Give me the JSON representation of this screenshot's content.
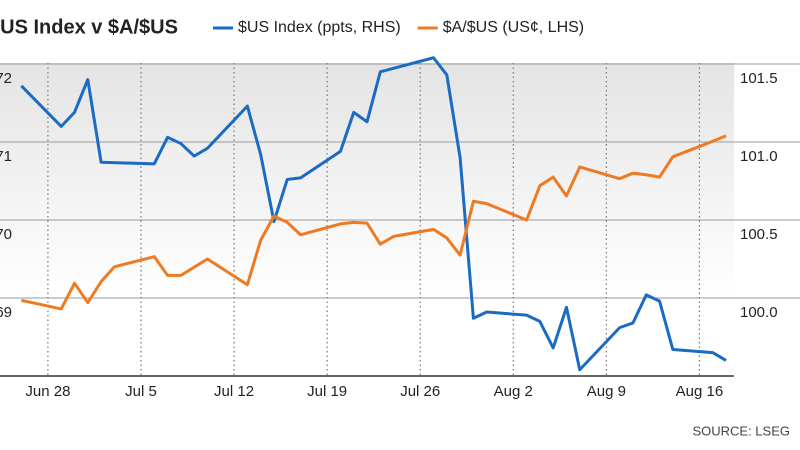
{
  "chart_data": {
    "type": "line",
    "title": "$US Index v $A/$US",
    "source": "SOURCE: LSEG",
    "xlim": [
      -2.1,
      51.6
    ],
    "xticks": [
      {
        "value": 0,
        "label": "Jun 28"
      },
      {
        "value": 7,
        "label": "Jul 5"
      },
      {
        "value": 14,
        "label": "Jul 12"
      },
      {
        "value": 21,
        "label": "Jul 19"
      },
      {
        "value": 28,
        "label": "Jul 26"
      },
      {
        "value": 35,
        "label": "Aug 2"
      },
      {
        "value": 42,
        "label": "Aug 9"
      },
      {
        "value": 49,
        "label": "Aug 16"
      }
    ],
    "ylim": [
      68,
      72.2
    ],
    "yticks": [
      72,
      71,
      70,
      69
    ],
    "y2lim": [
      99.5,
      101.6
    ],
    "y2ticks": [
      {
        "value": 101.5,
        "label": "101.5"
      },
      {
        "value": 101,
        "label": "101.0"
      },
      {
        "value": 100.5,
        "label": "100.5"
      },
      {
        "value": 100,
        "label": "100.0"
      }
    ],
    "grid": true,
    "series": [
      {
        "name": "$US Index (ppts, RHS)",
        "color": "#1a6bc4",
        "axis": "y2",
        "x": [
          -2,
          1,
          2,
          3,
          4,
          8,
          9,
          10,
          11,
          12,
          15,
          16,
          17,
          18,
          19,
          22,
          23,
          24,
          25,
          29,
          30,
          31,
          32,
          33,
          36,
          37,
          38,
          39,
          40,
          43,
          44,
          45,
          46,
          47,
          50,
          51
        ],
        "values": [
          101.36,
          101.1,
          101.19,
          101.4,
          100.87,
          100.86,
          101.03,
          100.99,
          100.91,
          100.96,
          101.23,
          100.92,
          100.49,
          100.76,
          100.77,
          100.94,
          101.19,
          101.13,
          101.45,
          101.54,
          101.43,
          100.9,
          99.87,
          99.91,
          99.89,
          99.85,
          99.68,
          99.94,
          99.54,
          99.81,
          99.84,
          100.02,
          99.98,
          99.67,
          99.65,
          99.6
        ]
      },
      {
        "name": "$A/$US (US¢, LHS)",
        "color": "#ee7a22",
        "x": [
          -2,
          1,
          2,
          3,
          4,
          5,
          8,
          9,
          10,
          12,
          15,
          16,
          17,
          18,
          19,
          22,
          23,
          24,
          25,
          26,
          29,
          30,
          31,
          32,
          33,
          36,
          37,
          38,
          39,
          40,
          43,
          44,
          45,
          46,
          47,
          50,
          51
        ],
        "values": [
          68.97,
          68.86,
          69.19,
          68.94,
          69.21,
          69.4,
          69.53,
          69.29,
          69.29,
          69.5,
          69.17,
          69.74,
          70.05,
          69.97,
          69.81,
          69.95,
          69.97,
          69.96,
          69.69,
          69.79,
          69.88,
          69.77,
          69.55,
          70.24,
          70.21,
          70.0,
          70.44,
          70.55,
          70.31,
          70.68,
          70.53,
          70.6,
          70.58,
          70.55,
          70.81,
          71.01,
          71.08
        ]
      }
    ]
  }
}
